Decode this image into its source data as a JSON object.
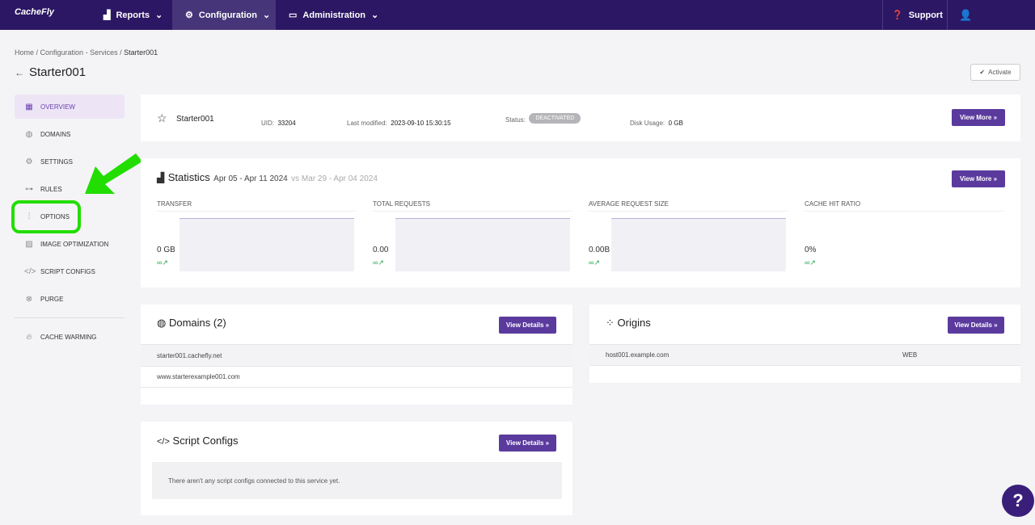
{
  "nav": {
    "logo": "CacheFly",
    "reports": "Reports",
    "configuration": "Configuration",
    "administration": "Administration",
    "support": "Support"
  },
  "breadcrumb": {
    "home": "Home",
    "services": "Configuration - Services",
    "current": "Starter001"
  },
  "page_title": "Starter001",
  "activate_label": "Activate",
  "sidebar": {
    "items": [
      {
        "label": "OVERVIEW",
        "icon": "dashboard-icon"
      },
      {
        "label": "DOMAINS",
        "icon": "globe-icon"
      },
      {
        "label": "SETTINGS",
        "icon": "gear-icon"
      },
      {
        "label": "RULES",
        "icon": "rules-icon"
      },
      {
        "label": "OPTIONS",
        "icon": "sliders-icon"
      },
      {
        "label": "IMAGE OPTIMIZATION",
        "icon": "image-icon"
      },
      {
        "label": "SCRIPT CONFIGS",
        "icon": "code-icon"
      },
      {
        "label": "PURGE",
        "icon": "x-circle-icon"
      },
      {
        "label": "CACHE WARMING",
        "icon": "fire-icon"
      }
    ]
  },
  "service": {
    "name": "Starter001",
    "uid_label": "UID:",
    "uid": "33204",
    "modified_label": "Last modified:",
    "modified": "2023-09-10 15:30:15",
    "status_label": "Status:",
    "status": "DEACTIVATED",
    "disk_label": "Disk Usage:",
    "disk": "0 GB",
    "view_more": "View More »"
  },
  "stats": {
    "title": "Statistics",
    "range": "Apr 05 - Apr 11 2024",
    "vs": "vs Mar 29 - Apr 04 2024",
    "view_more": "View More »",
    "metrics": [
      {
        "label": "TRANSFER",
        "value": "0 GB",
        "trend": "∞↗"
      },
      {
        "label": "TOTAL REQUESTS",
        "value": "0.00",
        "trend": "∞↗"
      },
      {
        "label": "AVERAGE REQUEST SIZE",
        "value": "0.00B",
        "trend": "∞↗"
      },
      {
        "label": "CACHE HIT RATIO",
        "value": "0%",
        "trend": "∞↗"
      }
    ]
  },
  "domains": {
    "title": "Domains (2)",
    "button": "View Details »",
    "rows": [
      "starter001.cachefly.net",
      "www.starterexample001.com"
    ]
  },
  "origins": {
    "title": "Origins",
    "button": "View Details »",
    "rows": [
      {
        "host": "host001.example.com",
        "type": "WEB"
      }
    ]
  },
  "scripts": {
    "title": "Script Configs",
    "button": "View Details »",
    "empty": "There aren't any script configs connected to this service yet."
  },
  "colors": {
    "nav": "#2b1763",
    "accent": "#5b3a9e",
    "annotation": "#22dd00"
  }
}
